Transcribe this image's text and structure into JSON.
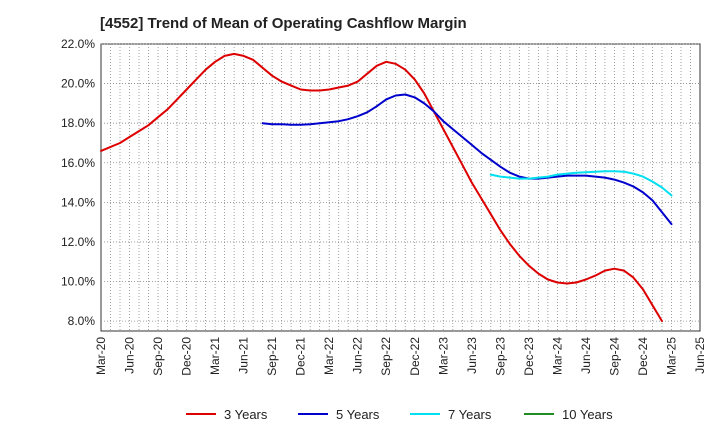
{
  "chart_data": {
    "type": "line",
    "title": "[4552]  Trend of Mean of Operating Cashflow Margin",
    "xlabel": "",
    "ylabel": "",
    "ylim": [
      7.5,
      22.0
    ],
    "y_ticks": [
      "8.0%",
      "10.0%",
      "12.0%",
      "14.0%",
      "16.0%",
      "18.0%",
      "20.0%",
      "22.0%"
    ],
    "y_tick_values": [
      8,
      10,
      12,
      14,
      16,
      18,
      20,
      22
    ],
    "x_tick_labels": [
      "Mar-20",
      "Jun-20",
      "Sep-20",
      "Dec-20",
      "Mar-21",
      "Jun-21",
      "Sep-21",
      "Dec-21",
      "Mar-22",
      "Jun-22",
      "Sep-22",
      "Dec-22",
      "Mar-23",
      "Jun-23",
      "Sep-23",
      "Dec-23",
      "Mar-24",
      "Jun-24",
      "Sep-24",
      "Dec-24",
      "Mar-25",
      "Jun-25"
    ],
    "grid": true,
    "legend_position": "bottom",
    "series": [
      {
        "name": "3 Years",
        "color": "#dd0000",
        "x": [
          "Mar-20",
          "Apr-20",
          "May-20",
          "Jun-20",
          "Jul-20",
          "Aug-20",
          "Sep-20",
          "Oct-20",
          "Nov-20",
          "Dec-20",
          "Jan-21",
          "Feb-21",
          "Mar-21",
          "Apr-21",
          "May-21",
          "Jun-21",
          "Jul-21",
          "Aug-21",
          "Sep-21",
          "Oct-21",
          "Nov-21",
          "Dec-21",
          "Jan-22",
          "Feb-22",
          "Mar-22",
          "Apr-22",
          "May-22",
          "Jun-22",
          "Jul-22",
          "Aug-22",
          "Sep-22",
          "Oct-22",
          "Nov-22",
          "Dec-22",
          "Jan-23",
          "Feb-23",
          "Mar-23",
          "Apr-23",
          "May-23",
          "Jun-23",
          "Jul-23",
          "Aug-23",
          "Sep-23",
          "Oct-23",
          "Nov-23",
          "Dec-23",
          "Jan-24",
          "Feb-24",
          "Mar-24",
          "Apr-24",
          "May-24",
          "Jun-24",
          "Jul-24",
          "Aug-24",
          "Sep-24",
          "Oct-24",
          "Nov-24",
          "Dec-24",
          "Jan-25",
          "Feb-25",
          "Mar-25"
        ],
        "values": [
          16.6,
          16.8,
          17.0,
          17.3,
          17.6,
          17.9,
          18.3,
          18.7,
          19.2,
          19.7,
          20.2,
          20.7,
          21.1,
          21.4,
          21.5,
          21.4,
          21.2,
          20.8,
          20.4,
          20.1,
          19.9,
          19.7,
          19.65,
          19.65,
          19.7,
          19.8,
          19.9,
          20.1,
          20.5,
          20.9,
          21.1,
          21.0,
          20.7,
          20.2,
          19.5,
          18.6,
          17.7,
          16.8,
          15.9,
          15.0,
          14.2,
          13.4,
          12.6,
          11.9,
          11.3,
          10.8,
          10.4,
          10.1,
          9.95,
          9.9,
          9.95,
          10.1,
          10.3,
          10.55,
          10.65,
          10.55,
          10.2,
          9.6,
          8.8,
          8.0,
          8.0
        ],
        "trim_end": 1
      },
      {
        "name": "5 Years",
        "color": "#0000cc",
        "x": [
          "Aug-21",
          "Sep-21",
          "Oct-21",
          "Nov-21",
          "Dec-21",
          "Jan-22",
          "Feb-22",
          "Mar-22",
          "Apr-22",
          "May-22",
          "Jun-22",
          "Jul-22",
          "Aug-22",
          "Sep-22",
          "Oct-22",
          "Nov-22",
          "Dec-22",
          "Jan-23",
          "Feb-23",
          "Mar-23",
          "Apr-23",
          "May-23",
          "Jun-23",
          "Jul-23",
          "Aug-23",
          "Sep-23",
          "Oct-23",
          "Nov-23",
          "Dec-23",
          "Jan-24",
          "Feb-24",
          "Mar-24",
          "Apr-24",
          "May-24",
          "Jun-24",
          "Jul-24",
          "Aug-24",
          "Sep-24",
          "Oct-24",
          "Nov-24",
          "Dec-24",
          "Jan-25",
          "Feb-25",
          "Mar-25"
        ],
        "values": [
          18.0,
          17.95,
          17.95,
          17.92,
          17.92,
          17.95,
          18.0,
          18.05,
          18.1,
          18.2,
          18.35,
          18.55,
          18.85,
          19.2,
          19.4,
          19.45,
          19.3,
          19.0,
          18.6,
          18.1,
          17.7,
          17.3,
          16.9,
          16.5,
          16.15,
          15.8,
          15.5,
          15.3,
          15.2,
          15.2,
          15.25,
          15.3,
          15.35,
          15.35,
          15.35,
          15.3,
          15.25,
          15.15,
          15.0,
          14.8,
          14.5,
          14.1,
          13.5,
          12.9
        ]
      },
      {
        "name": "7 Years",
        "color": "#00e0f0",
        "x": [
          "Aug-23",
          "Sep-23",
          "Oct-23",
          "Nov-23",
          "Dec-23",
          "Jan-24",
          "Feb-24",
          "Mar-24",
          "Apr-24",
          "May-24",
          "Jun-24",
          "Jul-24",
          "Aug-24",
          "Sep-24",
          "Oct-24",
          "Nov-24",
          "Dec-24",
          "Jan-25",
          "Feb-25",
          "Mar-25"
        ],
        "values": [
          15.4,
          15.3,
          15.25,
          15.2,
          15.2,
          15.25,
          15.3,
          15.4,
          15.45,
          15.5,
          15.52,
          15.55,
          15.57,
          15.57,
          15.55,
          15.45,
          15.3,
          15.05,
          14.75,
          14.35
        ]
      },
      {
        "name": "10 Years",
        "color": "#228b22",
        "x": [],
        "values": []
      }
    ]
  }
}
